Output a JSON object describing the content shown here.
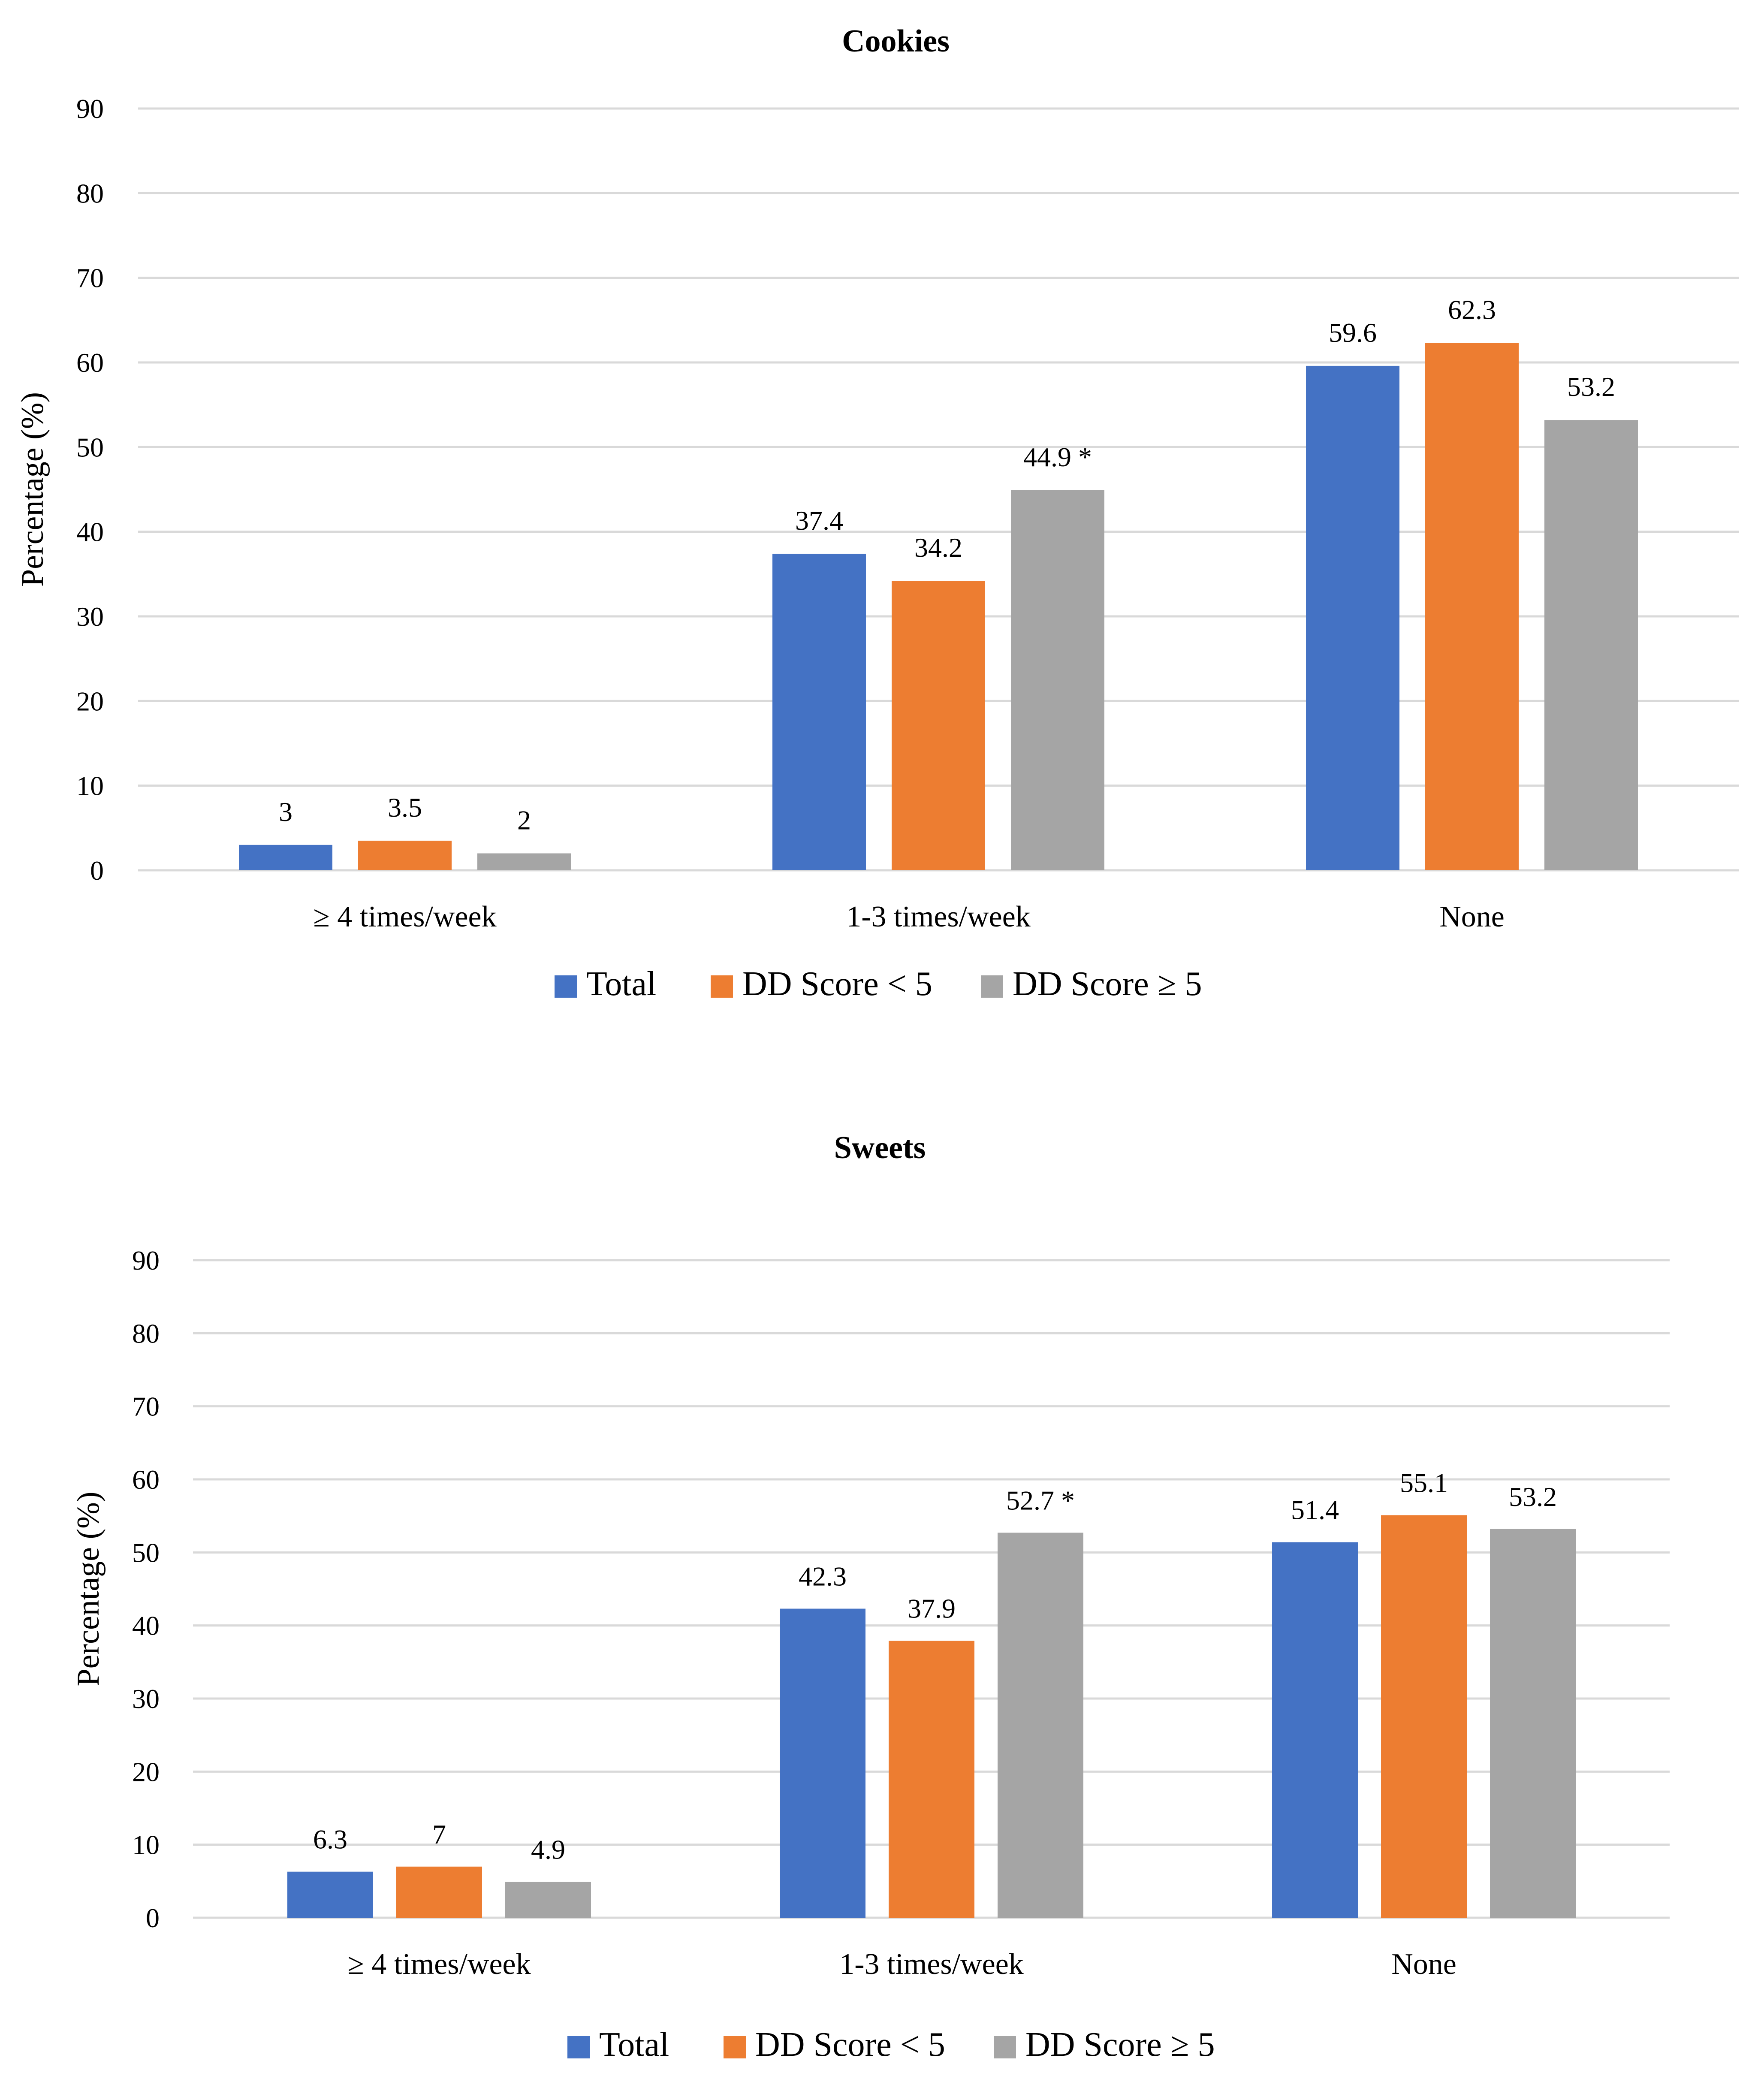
{
  "chart_data": [
    {
      "type": "bar",
      "title": "Cookies",
      "xlabel": "",
      "ylabel": "Percentage (%)",
      "ylim": [
        0,
        90
      ],
      "yticks": [
        0,
        10,
        20,
        30,
        40,
        50,
        60,
        70,
        80,
        90
      ],
      "categories": [
        "≥ 4 times/week",
        "1-3 times/week",
        "None"
      ],
      "series": [
        {
          "name": "Total",
          "color": "#4472C4",
          "values": [
            3,
            37.4,
            59.6
          ],
          "labels": [
            "3",
            "37.4",
            "59.6"
          ]
        },
        {
          "name": "DD Score < 5",
          "color": "#ED7D31",
          "values": [
            3.5,
            34.2,
            62.3
          ],
          "labels": [
            "3.5",
            "34.2",
            "62.3"
          ]
        },
        {
          "name": "DD Score ≥ 5",
          "color": "#A5A5A5",
          "values": [
            2,
            44.9,
            53.2
          ],
          "labels": [
            "2",
            "44.9 *",
            "53.2"
          ]
        }
      ],
      "grid": true,
      "legend": "bottom"
    },
    {
      "type": "bar",
      "title": "Sweets",
      "xlabel": "",
      "ylabel": "Percentage (%)",
      "ylim": [
        0,
        90
      ],
      "yticks": [
        0,
        10,
        20,
        30,
        40,
        50,
        60,
        70,
        80,
        90
      ],
      "categories": [
        "≥ 4 times/week",
        "1-3 times/week",
        "None"
      ],
      "series": [
        {
          "name": "Total",
          "color": "#4472C4",
          "values": [
            6.3,
            42.3,
            51.4
          ],
          "labels": [
            "6.3",
            "42.3",
            "51.4"
          ]
        },
        {
          "name": "DD Score < 5",
          "color": "#ED7D31",
          "values": [
            7,
            37.9,
            55.1
          ],
          "labels": [
            "7",
            "37.9",
            "55.1"
          ]
        },
        {
          "name": "DD Score ≥ 5",
          "color": "#A5A5A5",
          "values": [
            4.9,
            52.7,
            53.2
          ],
          "labels": [
            "4.9",
            "52.7 *",
            "53.2"
          ]
        }
      ],
      "grid": true,
      "legend": "bottom"
    }
  ]
}
